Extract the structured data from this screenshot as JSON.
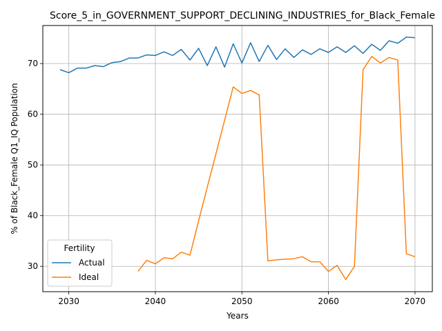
{
  "chart_data": {
    "type": "line",
    "title": "Score_5_in_GOVERNMENT_SUPPORT_DECLINING_INDUSTRIES_for_Black_Female",
    "xlabel": "Years",
    "ylabel": "% of Black_Female Q1_IQ Population",
    "xlim": [
      2027,
      2072
    ],
    "ylim": [
      25,
      77.5
    ],
    "xticks": [
      2030,
      2040,
      2050,
      2060,
      2070
    ],
    "yticks": [
      30,
      40,
      50,
      60,
      70
    ],
    "grid": true,
    "legend": {
      "title": "Fertility",
      "position": "lower-left"
    },
    "series": [
      {
        "name": "Actual",
        "color": "#1f77b4",
        "x": [
          2029,
          2030,
          2031,
          2032,
          2033,
          2034,
          2035,
          2036,
          2037,
          2038,
          2039,
          2040,
          2041,
          2042,
          2043,
          2044,
          2045,
          2046,
          2047,
          2048,
          2049,
          2050,
          2051,
          2052,
          2053,
          2054,
          2055,
          2056,
          2057,
          2058,
          2059,
          2060,
          2061,
          2062,
          2063,
          2064,
          2065,
          2066,
          2067,
          2068,
          2069,
          2070
        ],
        "y": [
          68.8,
          68.2,
          69.1,
          69.1,
          69.6,
          69.4,
          70.2,
          70.4,
          71.1,
          71.1,
          71.7,
          71.6,
          72.3,
          71.6,
          72.8,
          70.7,
          73.0,
          69.6,
          73.3,
          69.3,
          73.9,
          70.1,
          74.1,
          70.4,
          73.6,
          70.8,
          72.9,
          71.2,
          72.7,
          71.8,
          72.9,
          72.2,
          73.3,
          72.2,
          73.5,
          72.0,
          73.8,
          72.6,
          74.5,
          74.0,
          75.2,
          75.1
        ]
      },
      {
        "name": "Ideal",
        "color": "#ff7f0e",
        "x": [
          2038,
          2039,
          2040,
          2041,
          2042,
          2043,
          2044,
          2045,
          2046,
          2047,
          2048,
          2049,
          2050,
          2051,
          2052,
          2053,
          2054,
          2055,
          2056,
          2057,
          2058,
          2059,
          2060,
          2061,
          2062,
          2063,
          2064,
          2065,
          2066,
          2067,
          2068,
          2069,
          2070
        ],
        "y": [
          29.0,
          31.2,
          30.5,
          31.7,
          31.5,
          32.8,
          32.2,
          39.0,
          45.6,
          52.2,
          58.8,
          65.4,
          64.1,
          64.7,
          63.8,
          31.1,
          31.3,
          31.4,
          31.5,
          31.9,
          30.9,
          30.9,
          29.0,
          30.2,
          27.4,
          30.0,
          68.8,
          71.4,
          70.1,
          71.2,
          70.7,
          32.5,
          31.9
        ]
      }
    ]
  }
}
